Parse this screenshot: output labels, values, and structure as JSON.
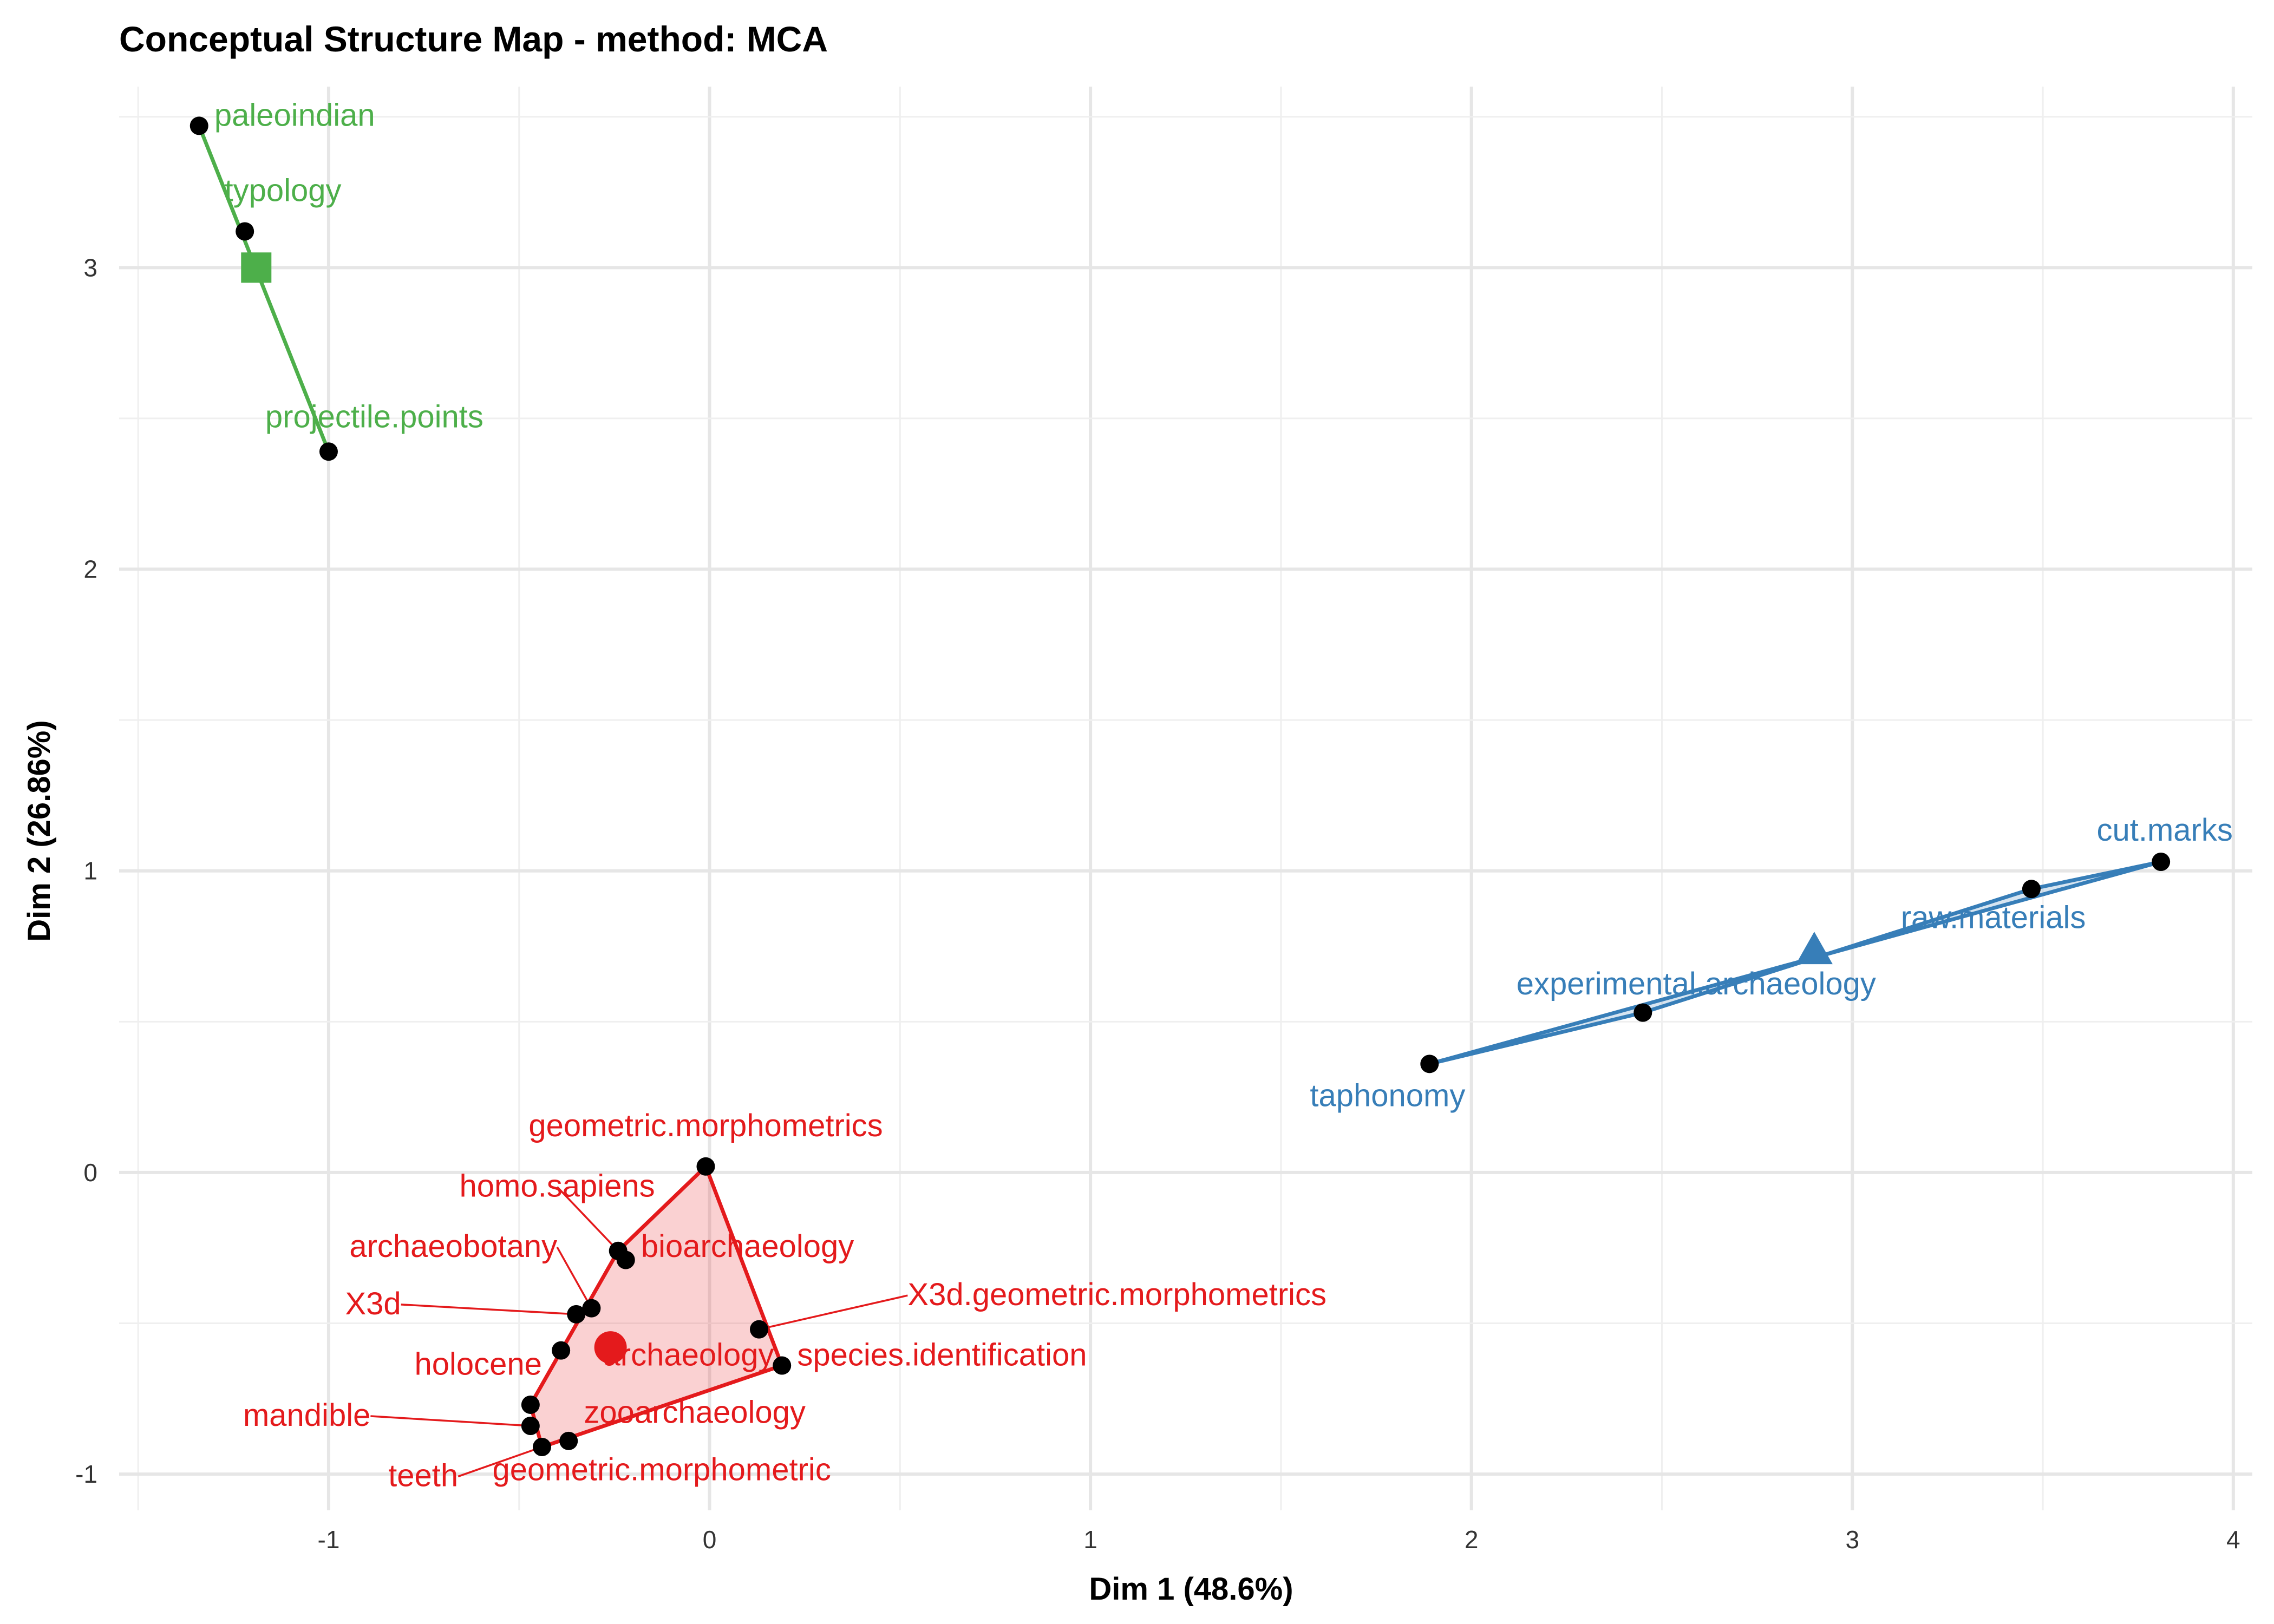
{
  "chart_data": {
    "type": "scatter",
    "title": "Conceptual Structure Map - method: MCA",
    "xlabel": "Dim 1 (48.6%)",
    "ylabel": "Dim 2 (26.86%)",
    "xlim": [
      -1.55,
      4.05
    ],
    "ylim": [
      -1.12,
      3.6
    ],
    "x_ticks": [
      -1,
      0,
      1,
      2,
      3,
      4
    ],
    "y_ticks": [
      -1,
      0,
      1,
      2,
      3
    ],
    "grid": true,
    "legend": "none",
    "clusters": [
      {
        "color": "#e41a1c",
        "centroid": [
          -0.26,
          -0.58
        ],
        "centroid_shape": "circle",
        "hull": [
          [
            -0.01,
            0.02
          ],
          [
            0.19,
            -0.64
          ],
          [
            -0.44,
            -0.91
          ],
          [
            -0.47,
            -0.77
          ],
          [
            -0.24,
            -0.26
          ]
        ],
        "points": [
          {
            "label": "geometric.morphometrics",
            "x": -0.01,
            "y": 0.02,
            "lx": -0.01,
            "ly": 0.12,
            "anchor": "middle"
          },
          {
            "label": "homo.sapiens",
            "x": -0.24,
            "y": -0.26,
            "lx": -0.4,
            "ly": -0.08,
            "anchor": "middle",
            "leader": true
          },
          {
            "label": "bioarchaeology",
            "x": -0.22,
            "y": -0.29,
            "lx": -0.18,
            "ly": -0.28,
            "anchor": "start"
          },
          {
            "label": "archaeobotany",
            "x": -0.31,
            "y": -0.45,
            "lx": -0.4,
            "ly": -0.28,
            "anchor": "end",
            "leader": true
          },
          {
            "label": "X3d",
            "x": -0.35,
            "y": -0.47,
            "lx": -0.81,
            "ly": -0.47,
            "anchor": "end",
            "leader": true
          },
          {
            "label": "X3d.geometric.morphometrics",
            "x": 0.13,
            "y": -0.52,
            "lx": 0.52,
            "ly": -0.44,
            "anchor": "start",
            "leader": true
          },
          {
            "label": "holocene",
            "x": -0.39,
            "y": -0.59,
            "lx": -0.44,
            "ly": -0.67,
            "anchor": "end"
          },
          {
            "label": "archaeology",
            "x": -0.26,
            "y": -0.58,
            "lx": -0.28,
            "ly": -0.64,
            "anchor": "start"
          },
          {
            "label": "species.identification",
            "x": 0.19,
            "y": -0.64,
            "lx": 0.23,
            "ly": -0.64,
            "anchor": "start"
          },
          {
            "label": "zooarchaeology",
            "x": -0.37,
            "y": -0.89,
            "lx": -0.33,
            "ly": -0.83,
            "anchor": "start"
          },
          {
            "label": "mandible",
            "x": -0.47,
            "y": -0.84,
            "lx": -0.89,
            "ly": -0.84,
            "anchor": "end",
            "leader": true
          },
          {
            "label": "teeth",
            "x": -0.44,
            "y": -0.91,
            "lx": -0.66,
            "ly": -1.04,
            "anchor": "end",
            "leader": true
          },
          {
            "label": "geometric.morphometric",
            "x": -0.47,
            "y": -0.77,
            "lx": -0.57,
            "ly": -1.02,
            "anchor": "start"
          }
        ]
      },
      {
        "color": "#4daf4a",
        "centroid": [
          -1.19,
          3.0
        ],
        "centroid_shape": "square",
        "hull": [
          [
            -1.34,
            3.47
          ],
          [
            -1.0,
            2.39
          ]
        ],
        "points": [
          {
            "label": "paleoindian",
            "x": -1.34,
            "y": 3.47,
            "lx": -1.3,
            "ly": 3.47,
            "anchor": "start"
          },
          {
            "label": "typology",
            "x": -1.22,
            "y": 3.12,
            "lx": -1.12,
            "ly": 3.22,
            "anchor": "middle"
          },
          {
            "label": "projectile.points",
            "x": -1.0,
            "y": 2.39,
            "lx": -0.88,
            "ly": 2.47,
            "anchor": "middle"
          }
        ]
      },
      {
        "color": "#377eb8",
        "centroid": [
          2.9,
          0.73
        ],
        "centroid_shape": "triangle",
        "hull": [
          [
            1.89,
            0.36
          ],
          [
            3.81,
            1.03
          ],
          [
            3.47,
            0.94
          ],
          [
            2.45,
            0.53
          ]
        ],
        "points": [
          {
            "label": "cut.marks",
            "x": 3.81,
            "y": 1.03,
            "lx": 3.82,
            "ly": 1.1,
            "anchor": "middle"
          },
          {
            "label": "raw.materials",
            "x": 3.47,
            "y": 0.94,
            "lx": 3.37,
            "ly": 0.81,
            "anchor": "middle"
          },
          {
            "label": "experimental.archaeology",
            "x": 2.45,
            "y": 0.53,
            "lx": 2.59,
            "ly": 0.59,
            "anchor": "middle"
          },
          {
            "label": "taphonomy",
            "x": 1.89,
            "y": 0.36,
            "lx": 1.78,
            "ly": 0.22,
            "anchor": "middle"
          }
        ]
      }
    ]
  }
}
